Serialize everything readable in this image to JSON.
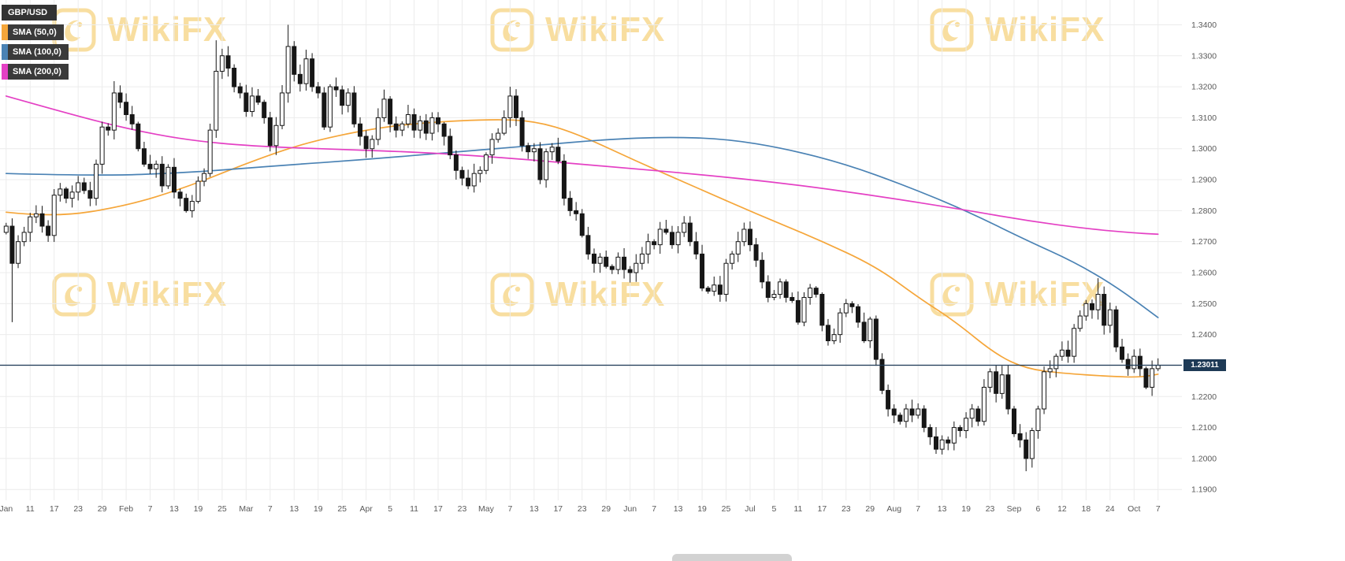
{
  "legend": {
    "pair": "GBP/USD",
    "items": [
      {
        "label": "SMA (50,0)",
        "color": "#f5a63a"
      },
      {
        "label": "SMA (100,0)",
        "color": "#4a82b4"
      },
      {
        "label": "SMA (200,0)",
        "color": "#e440c4"
      }
    ]
  },
  "watermark": {
    "text": "WikiFX",
    "color": "#f3c14b"
  },
  "chart_data": {
    "type": "candlestick",
    "instrument": "GBP/USD",
    "last_price": 1.23011,
    "last_price_label": "1.23011",
    "y_ticks": [
      "1.3400",
      "1.3300",
      "1.3200",
      "1.3100",
      "1.3000",
      "1.2900",
      "1.2800",
      "1.2700",
      "1.2600",
      "1.2500",
      "1.2400",
      "1.2300",
      "1.2200",
      "1.2100",
      "1.2000",
      "1.1900"
    ],
    "y_range": [
      1.1865,
      1.348
    ],
    "x_labels": [
      [
        0,
        "Jan"
      ],
      [
        4,
        "11"
      ],
      [
        8,
        "17"
      ],
      [
        12,
        "23"
      ],
      [
        16,
        "29"
      ],
      [
        20,
        "Feb"
      ],
      [
        24,
        "7"
      ],
      [
        28,
        "13"
      ],
      [
        32,
        "19"
      ],
      [
        36,
        "25"
      ],
      [
        40,
        "Mar"
      ],
      [
        44,
        "7"
      ],
      [
        48,
        "13"
      ],
      [
        52,
        "19"
      ],
      [
        56,
        "25"
      ],
      [
        60,
        "Apr"
      ],
      [
        64,
        "5"
      ],
      [
        68,
        "11"
      ],
      [
        72,
        "17"
      ],
      [
        76,
        "23"
      ],
      [
        80,
        "May"
      ],
      [
        84,
        "7"
      ],
      [
        88,
        "13"
      ],
      [
        92,
        "17"
      ],
      [
        96,
        "23"
      ],
      [
        100,
        "29"
      ],
      [
        104,
        "Jun"
      ],
      [
        108,
        "7"
      ],
      [
        112,
        "13"
      ],
      [
        116,
        "19"
      ],
      [
        120,
        "25"
      ],
      [
        124,
        "Jul"
      ],
      [
        128,
        "5"
      ],
      [
        132,
        "11"
      ],
      [
        136,
        "17"
      ],
      [
        140,
        "23"
      ],
      [
        144,
        "29"
      ],
      [
        148,
        "Aug"
      ],
      [
        152,
        "7"
      ],
      [
        156,
        "13"
      ],
      [
        160,
        "19"
      ],
      [
        164,
        "23"
      ],
      [
        168,
        "Sep"
      ],
      [
        172,
        "6"
      ],
      [
        176,
        "12"
      ],
      [
        180,
        "18"
      ],
      [
        184,
        "24"
      ],
      [
        188,
        "Oct"
      ],
      [
        192,
        "7"
      ]
    ],
    "first_open": 1.273,
    "closes_daily": [
      1.275,
      1.263,
      1.27,
      1.273,
      1.278,
      1.279,
      1.275,
      1.272,
      1.285,
      1.287,
      1.284,
      1.286,
      1.289,
      1.2865,
      1.284,
      1.295,
      1.307,
      1.306,
      1.318,
      1.315,
      1.311,
      1.308,
      1.3,
      1.295,
      1.2935,
      1.295,
      1.288,
      1.294,
      1.286,
      1.284,
      1.28,
      1.283,
      1.2895,
      1.292,
      1.306,
      1.325,
      1.33,
      1.326,
      1.32,
      1.318,
      1.312,
      1.317,
      1.315,
      1.31,
      1.301,
      1.3075,
      1.318,
      1.333,
      1.324,
      1.321,
      1.329,
      1.32,
      1.318,
      1.307,
      1.32,
      1.319,
      1.314,
      1.318,
      1.308,
      1.304,
      1.3,
      1.303,
      1.31,
      1.316,
      1.308,
      1.306,
      1.308,
      1.311,
      1.306,
      1.309,
      1.305,
      1.31,
      1.308,
      1.304,
      1.298,
      1.293,
      1.2905,
      1.288,
      1.292,
      1.293,
      1.298,
      1.303,
      1.305,
      1.31,
      1.317,
      1.31,
      1.301,
      1.299,
      1.3,
      1.29,
      1.299,
      1.3005,
      1.296,
      1.284,
      1.28,
      1.279,
      1.272,
      1.266,
      1.263,
      1.265,
      1.262,
      1.261,
      1.265,
      1.261,
      1.26,
      1.263,
      1.266,
      1.27,
      1.269,
      1.274,
      1.273,
      1.269,
      1.273,
      1.276,
      1.27,
      1.266,
      1.255,
      1.254,
      1.256,
      1.253,
      1.263,
      1.266,
      1.27,
      1.274,
      1.269,
      1.264,
      1.257,
      1.252,
      1.253,
      1.257,
      1.252,
      1.251,
      1.244,
      1.252,
      1.255,
      1.253,
      1.243,
      1.238,
      1.24,
      1.247,
      1.25,
      1.249,
      1.244,
      1.238,
      1.245,
      1.232,
      1.222,
      1.216,
      1.214,
      1.212,
      1.216,
      1.214,
      1.216,
      1.21,
      1.207,
      1.203,
      1.206,
      1.205,
      1.21,
      1.209,
      1.213,
      1.216,
      1.212,
      1.223,
      1.228,
      1.221,
      1.227,
      1.216,
      1.208,
      1.206,
      1.2,
      1.209,
      1.216,
      1.228,
      1.229,
      1.233,
      1.235,
      1.233,
      1.242,
      1.246,
      1.25,
      1.248,
      1.253,
      1.243,
      1.248,
      1.236,
      1.232,
      1.229,
      1.233,
      1.229,
      1.223,
      1.229,
      1.2301
    ],
    "special_wicks": {
      "1": {
        "low": 1.244
      },
      "18": {
        "high": 1.3218
      },
      "35": {
        "high": 1.335
      },
      "47": {
        "high": 1.34
      },
      "84": {
        "high": 1.32
      },
      "119": {
        "low": 1.2506
      },
      "155": {
        "low": 1.2015
      },
      "170": {
        "low": 1.1959
      },
      "182": {
        "high": 1.2582
      }
    },
    "sma_series": [
      {
        "name": "SMA 50",
        "color": "#f5a63a",
        "anchors": [
          [
            0,
            1.2795
          ],
          [
            8,
            1.2778
          ],
          [
            20,
            1.2815
          ],
          [
            30,
            1.2875
          ],
          [
            41,
            1.296
          ],
          [
            50,
            1.302
          ],
          [
            61,
            1.3065
          ],
          [
            70,
            1.3085
          ],
          [
            81,
            1.3095
          ],
          [
            88,
            1.309
          ],
          [
            95,
            1.305
          ],
          [
            105,
            1.296
          ],
          [
            115,
            1.2875
          ],
          [
            125,
            1.279
          ],
          [
            135,
            1.271
          ],
          [
            145,
            1.262
          ],
          [
            152,
            1.252
          ],
          [
            158,
            1.2445
          ],
          [
            165,
            1.2335
          ],
          [
            170,
            1.229
          ],
          [
            176,
            1.2275
          ],
          [
            184,
            1.2265
          ],
          [
            189,
            1.2262
          ],
          [
            192,
            1.2272
          ]
        ]
      },
      {
        "name": "SMA 100",
        "color": "#4a82b4",
        "anchors": [
          [
            0,
            1.292
          ],
          [
            15,
            1.2912
          ],
          [
            30,
            1.2922
          ],
          [
            45,
            1.2945
          ],
          [
            60,
            1.2965
          ],
          [
            75,
            1.299
          ],
          [
            88,
            1.301
          ],
          [
            100,
            1.303
          ],
          [
            110,
            1.3038
          ],
          [
            120,
            1.3032
          ],
          [
            130,
            1.3
          ],
          [
            140,
            1.295
          ],
          [
            150,
            1.288
          ],
          [
            160,
            1.28
          ],
          [
            170,
            1.2705
          ],
          [
            178,
            1.2635
          ],
          [
            185,
            1.2555
          ],
          [
            192,
            1.2455
          ]
        ]
      },
      {
        "name": "SMA 200",
        "color": "#e440c4",
        "anchors": [
          [
            0,
            1.317
          ],
          [
            10,
            1.3115
          ],
          [
            20,
            1.3065
          ],
          [
            30,
            1.3028
          ],
          [
            41,
            1.3008
          ],
          [
            55,
            1.2998
          ],
          [
            70,
            1.2988
          ],
          [
            85,
            1.2968
          ],
          [
            100,
            1.2943
          ],
          [
            115,
            1.2918
          ],
          [
            130,
            1.2888
          ],
          [
            145,
            1.2848
          ],
          [
            160,
            1.2802
          ],
          [
            170,
            1.2768
          ],
          [
            180,
            1.2742
          ],
          [
            188,
            1.2728
          ],
          [
            192,
            1.2724
          ]
        ]
      }
    ],
    "grid_color": "#ececec",
    "axis_text_color": "#5a5a5a",
    "up_color": "#ffffff",
    "down_color": "#161616",
    "price_line_color": "#1e3a56"
  }
}
